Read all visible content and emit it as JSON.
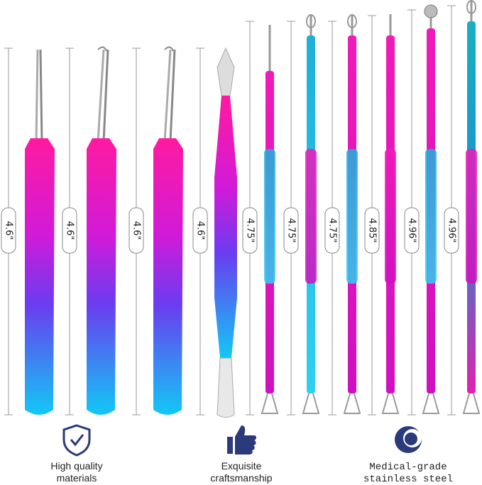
{
  "measurements": [
    "4.6\"",
    "4.6\"",
    "4.6\"",
    "4.6\"",
    "4.75\"",
    "4.75\"",
    "4.75\"",
    "4.85\"",
    "4.96\"",
    "4.96\""
  ],
  "features": [
    {
      "lines": [
        "High quality",
        "materials"
      ]
    },
    {
      "lines": [
        "Exquisite",
        "craftsmanship"
      ]
    },
    {
      "lines": [
        "Medical-grade",
        "stainless steel"
      ]
    }
  ]
}
